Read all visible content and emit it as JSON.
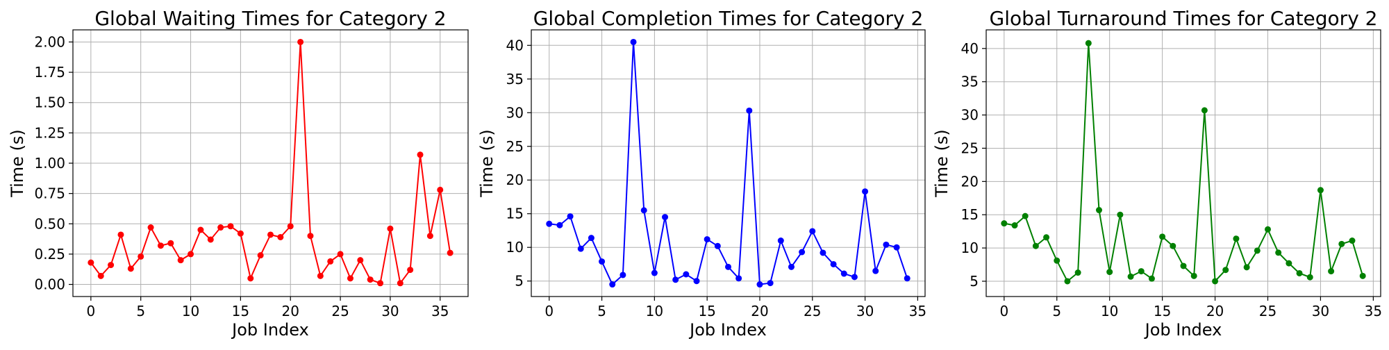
{
  "chart_data": [
    {
      "type": "line",
      "title": "Global Waiting Times for Category 2",
      "xlabel": "Job Index",
      "ylabel": "Time (s)",
      "color": "#ff0000",
      "xlim": [
        -1.8,
        37.8
      ],
      "ylim": [
        -0.1,
        2.1
      ],
      "xticks": [
        0,
        5,
        10,
        15,
        20,
        25,
        30,
        35
      ],
      "yticks": [
        0.0,
        0.25,
        0.5,
        0.75,
        1.0,
        1.25,
        1.5,
        1.75,
        2.0
      ],
      "ytick_labels": [
        "0.00",
        "0.25",
        "0.50",
        "0.75",
        "1.00",
        "1.25",
        "1.50",
        "1.75",
        "2.00"
      ],
      "grid": true,
      "x": [
        0,
        1,
        2,
        3,
        4,
        5,
        6,
        7,
        8,
        9,
        10,
        11,
        12,
        13,
        14,
        15,
        16,
        17,
        18,
        19,
        20,
        21,
        22,
        23,
        24,
        25,
        26,
        27,
        28,
        29,
        30,
        31,
        32,
        33,
        34,
        35,
        36
      ],
      "values": [
        0.18,
        0.07,
        0.16,
        0.41,
        0.13,
        0.23,
        0.47,
        0.32,
        0.34,
        0.2,
        0.25,
        0.45,
        0.37,
        0.47,
        0.48,
        0.42,
        0.05,
        0.24,
        0.41,
        0.39,
        0.48,
        2.0,
        0.4,
        0.07,
        0.19,
        0.25,
        0.05,
        0.2,
        0.04,
        0.01,
        0.46,
        0.01,
        0.12,
        1.07,
        0.4,
        0.78,
        0.26
      ]
    },
    {
      "type": "line",
      "title": "Global Completion Times for Category 2",
      "xlabel": "Job Index",
      "ylabel": "Time (s)",
      "color": "#0000ff",
      "xlim": [
        -1.7,
        35.7
      ],
      "ylim": [
        2.7,
        42.3
      ],
      "xticks": [
        0,
        5,
        10,
        15,
        20,
        25,
        30,
        35
      ],
      "yticks": [
        5,
        10,
        15,
        20,
        25,
        30,
        35,
        40
      ],
      "ytick_labels": [
        "5",
        "10",
        "15",
        "20",
        "25",
        "30",
        "35",
        "40"
      ],
      "grid": true,
      "x": [
        0,
        1,
        2,
        3,
        4,
        5,
        6,
        7,
        8,
        9,
        10,
        11,
        12,
        13,
        14,
        15,
        16,
        17,
        18,
        19,
        20,
        21,
        22,
        23,
        24,
        25,
        26,
        27,
        28,
        29,
        30,
        31,
        32,
        33,
        34
      ],
      "values": [
        13.5,
        13.3,
        14.6,
        9.8,
        11.4,
        7.9,
        4.5,
        5.9,
        40.5,
        15.5,
        6.2,
        14.5,
        5.2,
        6.0,
        5.0,
        11.2,
        10.2,
        7.1,
        5.4,
        30.3,
        4.5,
        4.7,
        11.0,
        7.1,
        9.3,
        12.4,
        9.2,
        7.5,
        6.1,
        5.6,
        18.3,
        6.5,
        10.4,
        10.0,
        5.4
      ]
    },
    {
      "type": "line",
      "title": "Global Turnaround Times for Category 2",
      "xlabel": "Job Index",
      "ylabel": "Time (s)",
      "color": "#008000",
      "xlim": [
        -1.7,
        35.7
      ],
      "ylim": [
        2.7,
        42.8
      ],
      "xticks": [
        0,
        5,
        10,
        15,
        20,
        25,
        30,
        35
      ],
      "yticks": [
        5,
        10,
        15,
        20,
        25,
        30,
        35,
        40
      ],
      "ytick_labels": [
        "5",
        "10",
        "15",
        "20",
        "25",
        "30",
        "35",
        "40"
      ],
      "grid": true,
      "x": [
        0,
        1,
        2,
        3,
        4,
        5,
        6,
        7,
        8,
        9,
        10,
        11,
        12,
        13,
        14,
        15,
        16,
        17,
        18,
        19,
        20,
        21,
        22,
        23,
        24,
        25,
        26,
        27,
        28,
        29,
        30,
        31,
        32,
        33,
        34
      ],
      "values": [
        13.7,
        13.4,
        14.8,
        10.3,
        11.6,
        8.1,
        5.0,
        6.3,
        40.8,
        15.7,
        6.4,
        15.0,
        5.7,
        6.5,
        5.4,
        11.7,
        10.3,
        7.3,
        5.8,
        30.7,
        5.0,
        6.7,
        11.4,
        7.1,
        9.6,
        12.8,
        9.3,
        7.7,
        6.2,
        5.6,
        18.7,
        6.5,
        10.6,
        11.1,
        5.8
      ]
    }
  ]
}
